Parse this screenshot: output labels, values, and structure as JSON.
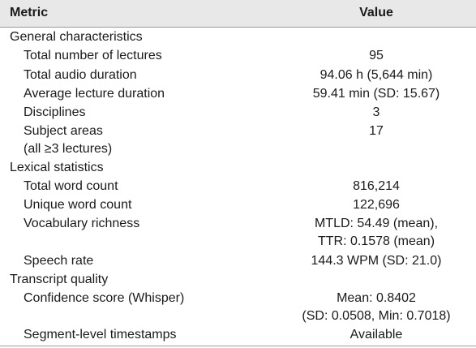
{
  "header": {
    "metric": "Metric",
    "value": "Value"
  },
  "rows": [
    {
      "metric": "General characteristics",
      "value": ""
    },
    {
      "metric": "Total number of lectures",
      "value": "95"
    },
    {
      "metric": "Total audio duration",
      "value": "94.06 h (5,644 min)"
    },
    {
      "metric": "Average lecture duration",
      "value": "59.41 min (SD: 15.67)"
    },
    {
      "metric": "Disciplines",
      "value": "3"
    },
    {
      "metric": "Subject areas",
      "value": "17"
    },
    {
      "metric": "(all ≥3 lectures)",
      "value": ""
    },
    {
      "metric": "Lexical statistics",
      "value": ""
    },
    {
      "metric": "Total word count",
      "value": "816,214"
    },
    {
      "metric": "Unique word count",
      "value": "122,696"
    },
    {
      "metric": "Vocabulary richness",
      "value": "MTLD: 54.49 (mean),"
    },
    {
      "metric": "",
      "value": "TTR: 0.1578 (mean)"
    },
    {
      "metric": "Speech rate",
      "value": "144.3 WPM (SD: 21.0)"
    },
    {
      "metric": "Transcript quality",
      "value": ""
    },
    {
      "metric": "Confidence score (Whisper)",
      "value": "Mean: 0.8402"
    },
    {
      "metric": "",
      "value": "(SD: 0.0508, Min: 0.7018)"
    },
    {
      "metric": "Segment-level timestamps",
      "value": "Available"
    }
  ]
}
